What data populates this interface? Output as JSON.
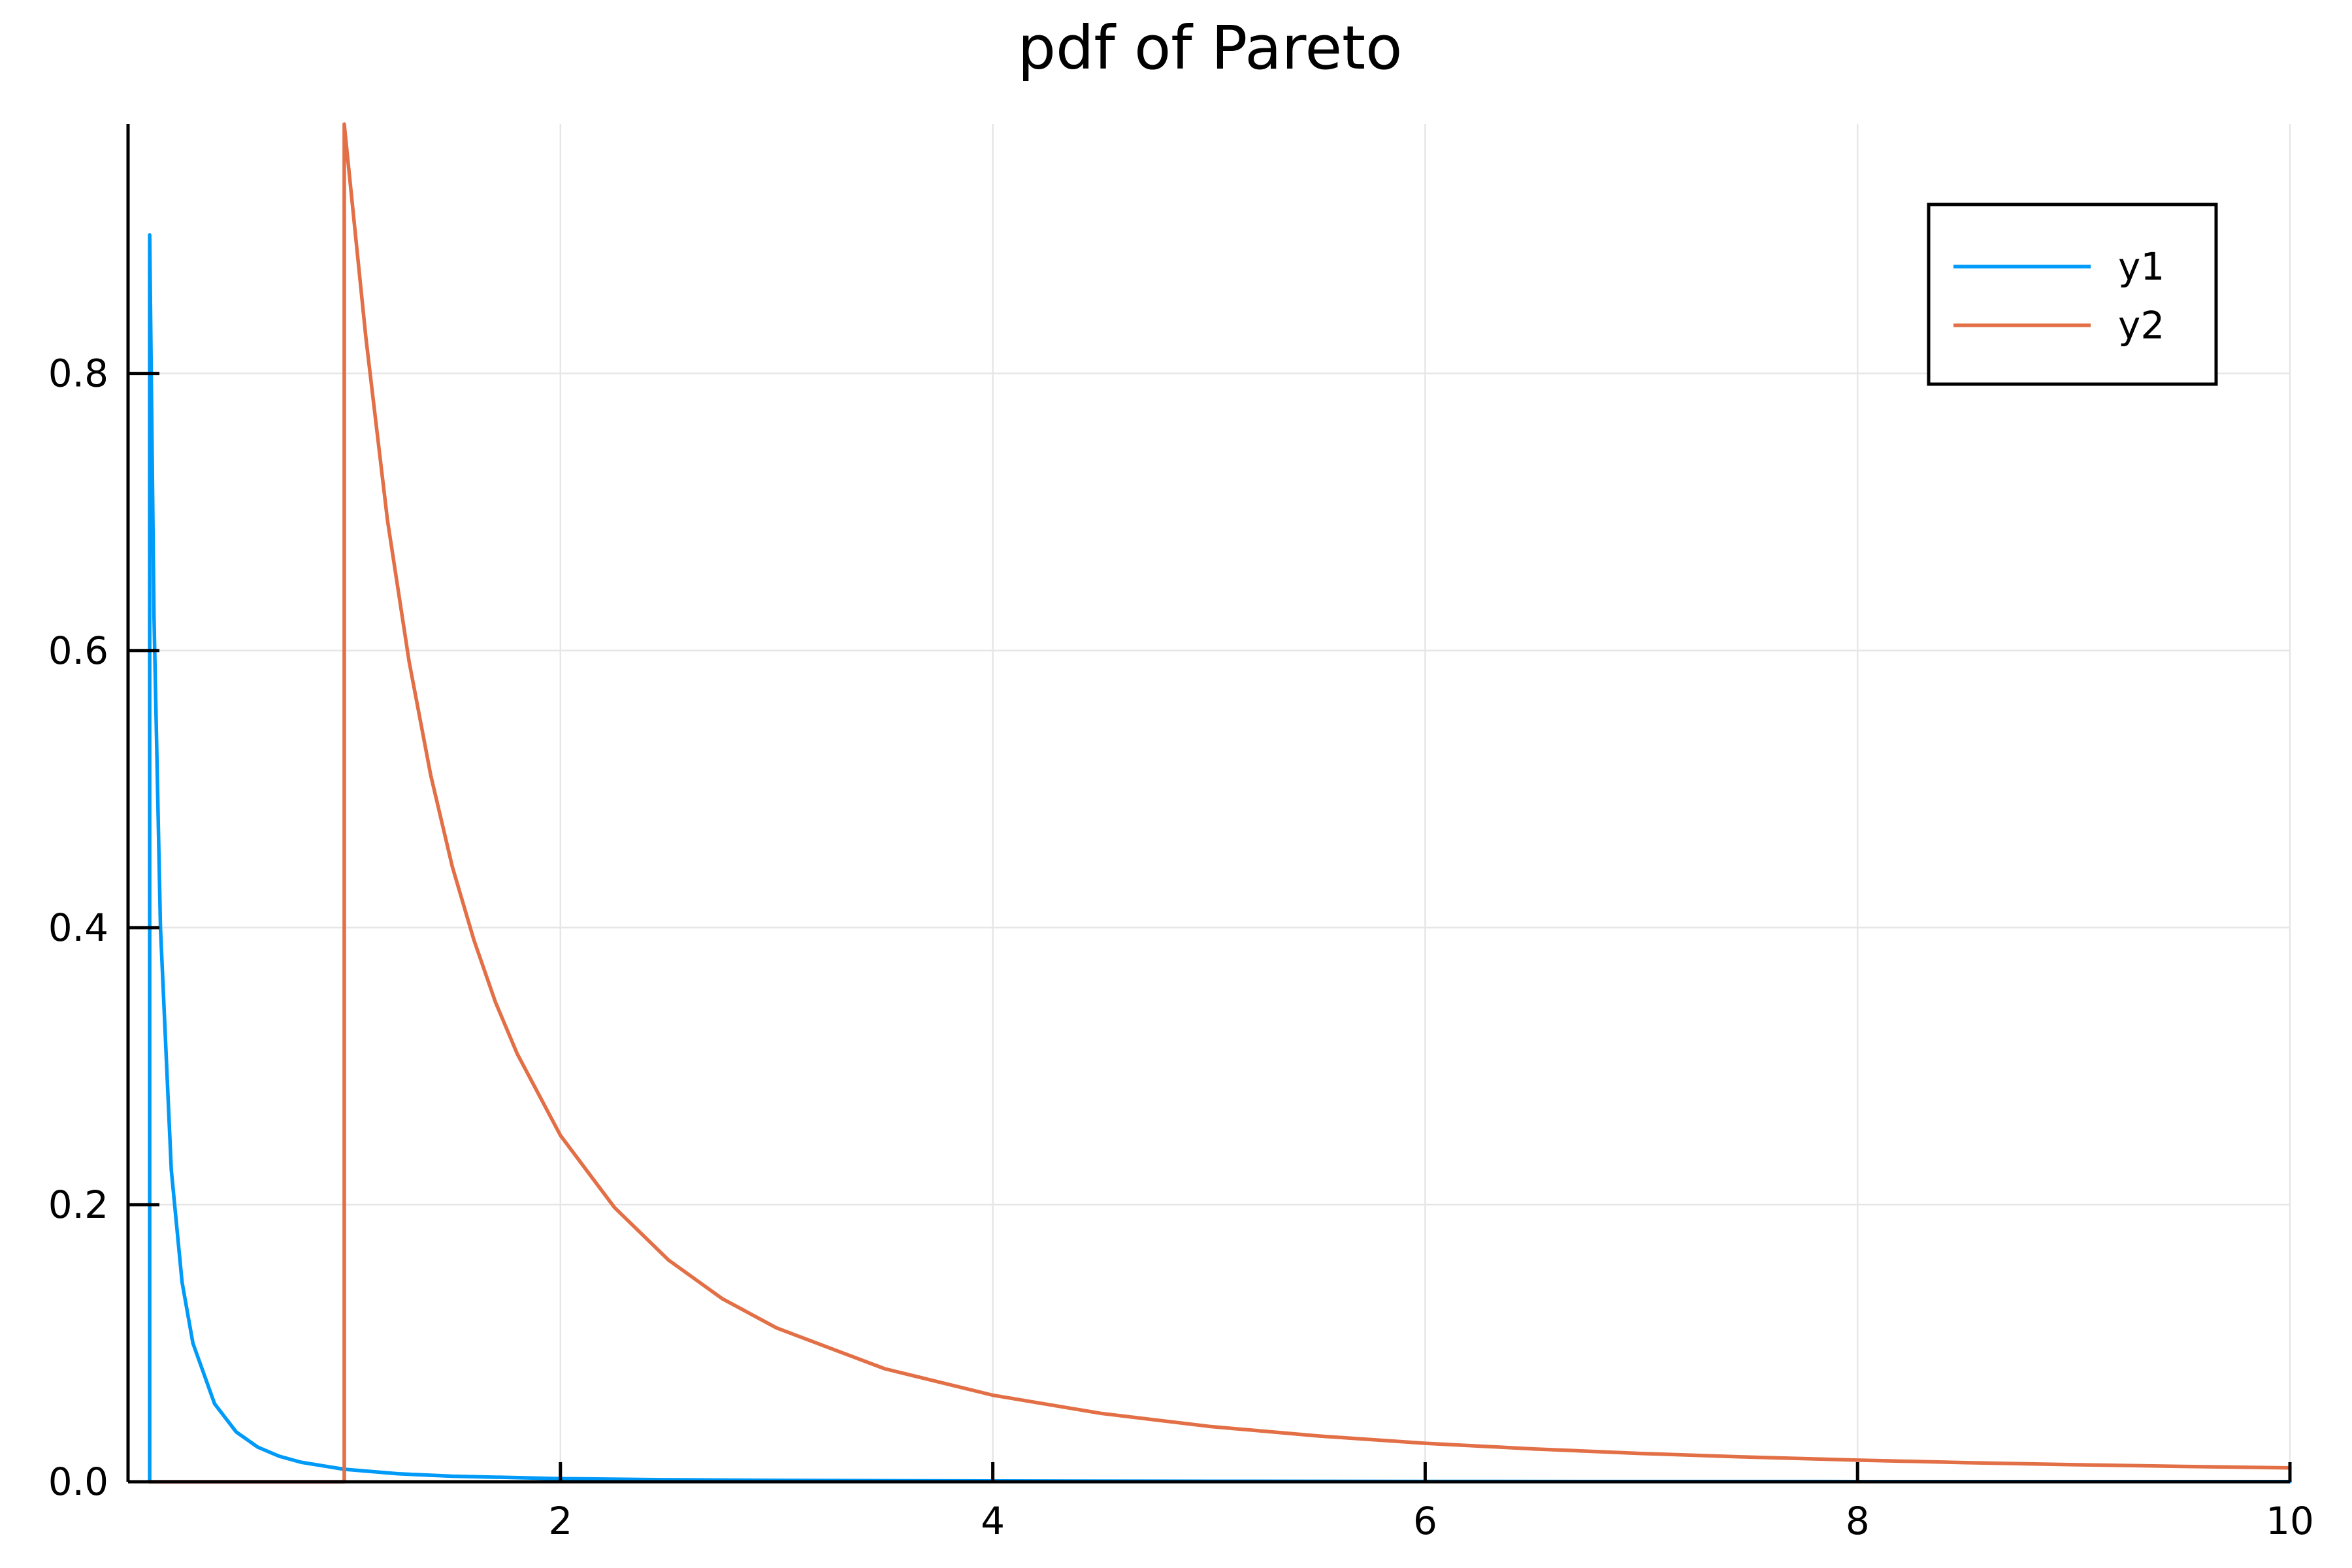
{
  "chart_data": {
    "type": "line",
    "title": "pdf of Pareto",
    "xlabel": "",
    "ylabel": "",
    "xlim": [
      0,
      10
    ],
    "ylim": [
      0,
      0.98
    ],
    "grid": true,
    "legend_position": "top-right",
    "x_ticks": [
      {
        "value": 2,
        "label": "2"
      },
      {
        "value": 4,
        "label": "4"
      },
      {
        "value": 6,
        "label": "6"
      },
      {
        "value": 8,
        "label": "8"
      },
      {
        "value": 10,
        "label": "10"
      }
    ],
    "y_ticks": [
      {
        "value": 0,
        "label": "0.0"
      },
      {
        "value": 0.2,
        "label": "0.2"
      },
      {
        "value": 0.4,
        "label": "0.4"
      },
      {
        "value": 0.6,
        "label": "0.6"
      },
      {
        "value": 0.8,
        "label": "0.8"
      }
    ],
    "series": [
      {
        "name": "y1",
        "color": "#009af9",
        "points": [
          [
            0.1,
            0
          ],
          [
            0.1,
            0.9
          ],
          [
            0.12,
            0.625
          ],
          [
            0.15,
            0.4
          ],
          [
            0.2,
            0.225
          ],
          [
            0.25,
            0.144
          ],
          [
            0.3,
            0.1
          ],
          [
            0.4,
            0.0563
          ],
          [
            0.5,
            0.036
          ],
          [
            0.6,
            0.025
          ],
          [
            0.7,
            0.0184
          ],
          [
            0.8,
            0.0141
          ],
          [
            1,
            0.009
          ],
          [
            1.25,
            0.00576
          ],
          [
            1.5,
            0.004
          ],
          [
            2,
            0.00225
          ],
          [
            2.5,
            0.00144
          ],
          [
            3,
            0.001
          ],
          [
            4,
            0.000563
          ],
          [
            5,
            0.00036
          ],
          [
            6,
            0.00025
          ],
          [
            7,
            0.000184
          ],
          [
            8,
            0.000141
          ],
          [
            9,
            0.000111
          ],
          [
            10,
            9e-05
          ]
        ]
      },
      {
        "name": "y2",
        "color": "#e26f46",
        "points": [
          [
            0.1,
            0
          ],
          [
            1,
            0
          ],
          [
            1,
            0.98
          ],
          [
            1.1,
            0.826
          ],
          [
            1.2,
            0.694
          ],
          [
            1.3,
            0.592
          ],
          [
            1.4,
            0.51
          ],
          [
            1.5,
            0.444
          ],
          [
            1.6,
            0.391
          ],
          [
            1.7,
            0.346
          ],
          [
            1.8,
            0.309
          ],
          [
            2,
            0.25
          ],
          [
            2.25,
            0.198
          ],
          [
            2.5,
            0.16
          ],
          [
            2.75,
            0.132
          ],
          [
            3,
            0.111
          ],
          [
            3.5,
            0.0816
          ],
          [
            4,
            0.0625
          ],
          [
            4.5,
            0.0494
          ],
          [
            5,
            0.04
          ],
          [
            5.5,
            0.0331
          ],
          [
            6,
            0.0278
          ],
          [
            6.5,
            0.0237
          ],
          [
            7,
            0.0204
          ],
          [
            7.5,
            0.0178
          ],
          [
            8,
            0.0156
          ],
          [
            8.5,
            0.0138
          ],
          [
            9,
            0.0123
          ],
          [
            9.5,
            0.0111
          ],
          [
            10,
            0.01
          ]
        ]
      }
    ]
  }
}
